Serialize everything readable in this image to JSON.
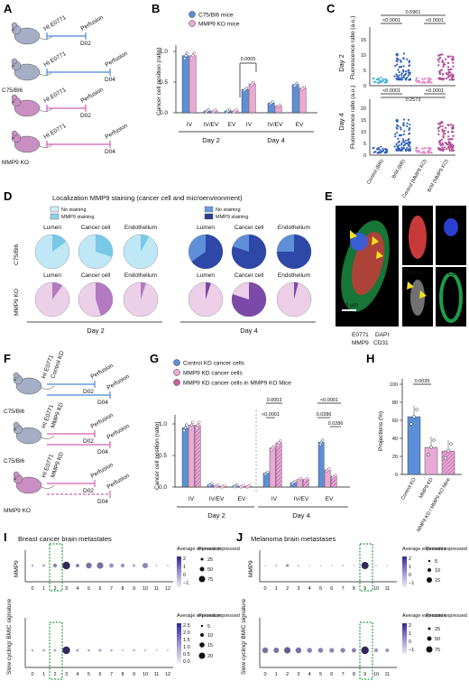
{
  "panels": [
    "A",
    "B",
    "C",
    "D",
    "E",
    "F",
    "G",
    "H",
    "I",
    "J"
  ],
  "colors": {
    "blue": "#5b8fd6",
    "blue_light": "#8fd3ec",
    "pink": "#e9a9d5",
    "purple": "#9b6bbf",
    "dark_blue": "#3b5eb5",
    "navy": "#2a3e8c"
  },
  "panel_a": {
    "rows": [
      {
        "treatment": "HI E0771",
        "end": "Perfusion",
        "day": "D02",
        "mouse": "C75/Bl6"
      },
      {
        "treatment": "HI E0771",
        "end": "Perfusion",
        "day": "D04",
        "mouse": "C75/Bl6"
      },
      {
        "treatment": "HI E0771",
        "end": "Perfusion",
        "day": "D02",
        "mouse": "MMP9 KO"
      },
      {
        "treatment": "HI E0771",
        "end": "Perfusion",
        "day": "D04",
        "mouse": "MMP9 KO"
      }
    ]
  },
  "panel_b": {
    "legend": [
      "C75/Bl6 mice",
      "MMP9 KO mice"
    ],
    "ylabel": "Cancer cell position (ratio)",
    "yticks": [
      "0.0",
      "0.5",
      "1.0"
    ],
    "categories": [
      "IV",
      "IV/EV",
      "EV",
      "IV",
      "IV/EV",
      "EV"
    ],
    "groups": [
      "Day 2",
      "Day 4"
    ],
    "stat": "0.0005",
    "chart_data": {
      "type": "bar",
      "categories": [
        "Day 2 IV",
        "Day 2 IV/EV",
        "Day 2 EV",
        "Day 4 IV",
        "Day 4 IV/EV",
        "Day 4 EV"
      ],
      "series": [
        {
          "name": "C75/Bl6 mice",
          "values": [
            0.93,
            0.03,
            0.03,
            0.38,
            0.16,
            0.46
          ]
        },
        {
          "name": "MMP9 KO mice",
          "values": [
            0.93,
            0.03,
            0.03,
            0.47,
            0.11,
            0.4
          ]
        }
      ],
      "ylim": [
        0,
        1.1
      ]
    }
  },
  "panel_c": {
    "ylabel": "Fluorescence ratio (a.u.)",
    "top_label": "Day 2",
    "bottom_label": "Day 4",
    "top_yticks": [
      "0",
      "5",
      "10",
      "15"
    ],
    "bottom_yticks": [
      "0",
      "5",
      "10",
      "15",
      "20"
    ],
    "top_stats": [
      "<0.0001",
      "0.5901",
      "<0.0001"
    ],
    "bottom_stats": [
      "<0.0001",
      "0.2573",
      "<0.0001"
    ],
    "xcats": [
      "Control (Bl6)",
      "BrM (Bl6)",
      "Control (MMP9 KO)",
      "BrM (MMP9 KO)"
    ]
  },
  "panel_d": {
    "title": "Localization MMP9 staining (cancer cell and microenvironment)",
    "legend_day2": [
      "No staining",
      "MMP9 staining"
    ],
    "legend_day4": [
      "No staining",
      "MMP9 staining"
    ],
    "cols": [
      "Lumen",
      "Cancer cell",
      "Endothelium"
    ],
    "rows": [
      "C75/Bl6",
      "MMP9 KO"
    ],
    "days": [
      "Day 2",
      "Day 4"
    ],
    "chart_data": {
      "type": "pie",
      "pies": [
        {
          "day": "Day 2",
          "row": "C75/Bl6",
          "col": "Lumen",
          "mmp9_fraction": 0.15
        },
        {
          "day": "Day 2",
          "row": "C75/Bl6",
          "col": "Cancer cell",
          "mmp9_fraction": 0.3
        },
        {
          "day": "Day 2",
          "row": "C75/Bl6",
          "col": "Endothelium",
          "mmp9_fraction": 0.08
        },
        {
          "day": "Day 2",
          "row": "MMP9 KO",
          "col": "Lumen",
          "mmp9_fraction": 0.1
        },
        {
          "day": "Day 2",
          "row": "MMP9 KO",
          "col": "Cancer cell",
          "mmp9_fraction": 0.45
        },
        {
          "day": "Day 2",
          "row": "MMP9 KO",
          "col": "Endothelium",
          "mmp9_fraction": 0.05
        },
        {
          "day": "Day 4",
          "row": "C75/Bl6",
          "col": "Lumen",
          "mmp9_fraction": 0.65
        },
        {
          "day": "Day 4",
          "row": "C75/Bl6",
          "col": "Cancer cell",
          "mmp9_fraction": 0.8
        },
        {
          "day": "Day 4",
          "row": "C75/Bl6",
          "col": "Endothelium",
          "mmp9_fraction": 0.75
        },
        {
          "day": "Day 4",
          "row": "MMP9 KO",
          "col": "Lumen",
          "mmp9_fraction": 0.05
        },
        {
          "day": "Day 4",
          "row": "MMP9 KO",
          "col": "Cancer cell",
          "mmp9_fraction": 0.8
        },
        {
          "day": "Day 4",
          "row": "MMP9 KO",
          "col": "Endothelium",
          "mmp9_fraction": 0.04
        }
      ]
    }
  },
  "panel_e": {
    "scale": "10 µm",
    "legend_line1": [
      "E0771",
      "DAPI"
    ],
    "legend_line2": [
      "MMP9",
      "CD31"
    ],
    "tiles": [
      "E0771",
      "DAPI",
      "MMP9",
      "CD31"
    ]
  },
  "panel_f": {
    "rows": [
      {
        "treatment": "HI E0771",
        "kd": "Control KD",
        "mouse": "C75/Bl6"
      },
      {
        "treatment": "HI E0771",
        "kd": "MMP9 KD",
        "mouse": "C75/Bl6"
      },
      {
        "treatment": "HI E0771",
        "kd": "MMP9 KD",
        "mouse": "MMP9 KO"
      }
    ],
    "end": "Perfusion",
    "days": [
      "D02",
      "D04"
    ]
  },
  "panel_g": {
    "legend": [
      "Control KD cancer cells",
      "MMP9 KD cancer cells",
      "MMP9 KD cancer cells in MMP9 KO Mice"
    ],
    "ylabel": "Cancer cell position (ratio)",
    "yticks": [
      "0.0",
      "0.5",
      "1.0"
    ],
    "categories": [
      "IV",
      "IV/EV",
      "EV",
      "IV",
      "IV/EV",
      "EV"
    ],
    "groups": [
      "Day 2",
      "Day 4"
    ],
    "stats": [
      "0.0003",
      "<0.0001",
      "<0.0001",
      "0.0286",
      "0.0286"
    ],
    "chart_data": {
      "type": "bar",
      "categories": [
        "Day 2 IV",
        "Day 2 IV/EV",
        "Day 2 EV",
        "Day 4 IV",
        "Day 4 IV/EV",
        "Day 4 EV"
      ],
      "series": [
        {
          "name": "Control KD cancer cells",
          "values": [
            0.94,
            0.04,
            0.02,
            0.22,
            0.07,
            0.71
          ]
        },
        {
          "name": "MMP9 KD cancer cells",
          "values": [
            0.98,
            0.02,
            0.01,
            0.62,
            0.12,
            0.27
          ]
        },
        {
          "name": "MMP9 KD cancer cells in MMP9 KO Mice",
          "values": [
            0.98,
            0.01,
            0.01,
            0.7,
            0.12,
            0.17
          ]
        }
      ],
      "ylim": [
        0,
        1.1
      ]
    }
  },
  "panel_h": {
    "ylabel": "Projections (%)",
    "yticks": [
      "0",
      "20",
      "40",
      "60",
      "80",
      "100"
    ],
    "stat": "0.0035",
    "xcats": [
      "Control KO",
      "MMP9 KD",
      "MMP9 KD / MMP9 KO Mice"
    ],
    "chart_data": {
      "type": "bar",
      "categories": [
        "Control KO",
        "MMP9 KD",
        "MMP9 KD / MMP9 KO Mice"
      ],
      "values": [
        64,
        30,
        26
      ],
      "ylim": [
        0,
        100
      ]
    }
  },
  "panel_i": {
    "title": "Breast cancer brain metastates",
    "row1": "MMP9",
    "row2": "Slow cycling/ BMIC signature",
    "xticks": [
      "0",
      "1",
      "2",
      "3",
      "4",
      "5",
      "6",
      "7",
      "8",
      "9",
      "10",
      "11",
      "12"
    ],
    "legend1_title": "Average expression",
    "legend1_ticks": [
      "2",
      "1",
      "0",
      "−1"
    ],
    "legend2_title": "Percent expressed",
    "legend2_vals": [
      "25",
      "50",
      "75"
    ],
    "legend3_title": "Average expression",
    "legend3_ticks": [
      "2.5",
      "2.0",
      "1.5",
      "1.0",
      "0.5",
      "0.0"
    ],
    "legend4_title": "Percent expressed",
    "legend4_vals": [
      "5",
      "10",
      "15",
      "20"
    ]
  },
  "panel_j": {
    "title": "Melanoma brain metastases",
    "row1": "MMP9",
    "row2": "Slow cycling/ BMIC signature",
    "xticks": [
      "0",
      "1",
      "2",
      "3",
      "4",
      "5",
      "6",
      "7",
      "8",
      "9",
      "10",
      "11"
    ],
    "legend1_title": "Average expression",
    "legend1_ticks": [
      "2",
      "1",
      "0",
      "−1"
    ],
    "legend2_title": "Percent expressed",
    "legend2_vals": [
      "5",
      "10",
      "15"
    ],
    "legend3_title": "Average expression",
    "legend3_ticks": [
      "2",
      "1",
      "0",
      "−1"
    ],
    "legend4_title": "Percent expressed",
    "legend4_vals": [
      "25",
      "50",
      "75"
    ]
  }
}
